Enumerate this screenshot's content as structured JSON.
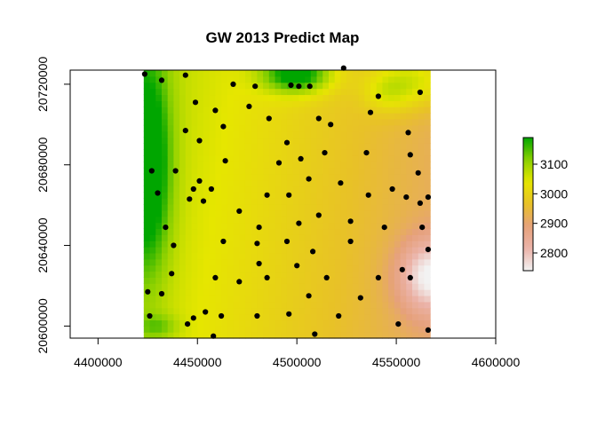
{
  "chart_data": {
    "type": "heatmap",
    "title": "GW 2013 Predict Map",
    "xlabel": "",
    "ylabel": "",
    "xlim": [
      4386000,
      4600000
    ],
    "ylim": [
      20594000,
      20727000
    ],
    "x_ticks": [
      4400000,
      4450000,
      4500000,
      4550000,
      4600000
    ],
    "x_tick_labels": [
      "4400000",
      "4450000",
      "4500000",
      "4550000",
      "4600000"
    ],
    "y_ticks": [
      20600000,
      20640000,
      20680000,
      20720000
    ],
    "y_tick_labels": [
      "20600000",
      "20640000",
      "20680000",
      "20720000"
    ],
    "raster_extent": {
      "x": [
        4423000,
        4567000
      ],
      "y": [
        20594000,
        20727000
      ]
    },
    "color_scale": {
      "range": [
        2740,
        3190
      ],
      "ticks": [
        2800,
        2900,
        3000,
        3100
      ],
      "tick_labels": [
        "2800",
        "2900",
        "3000",
        "3100"
      ],
      "palette": [
        "#f2f2f2",
        "#ebb3a9",
        "#e6a17b",
        "#e8c128",
        "#e6e600",
        "#8bd000",
        "#00a600"
      ]
    },
    "surface_model": {
      "base": 3000,
      "x_gradient": -1.1,
      "y_gradient": 0.15,
      "features": [
        {
          "x": 4425000,
          "y": 20680000,
          "amp": 200,
          "sx": 11000,
          "sy": 50000
        },
        {
          "x": 4500000,
          "y": 20725000,
          "amp": 225,
          "sx": 17000,
          "sy": 9000
        },
        {
          "x": 4560000,
          "y": 20722000,
          "amp": 110,
          "sx": 20000,
          "sy": 14000
        },
        {
          "x": 4545000,
          "y": 20716000,
          "amp": 60,
          "sx": 12000,
          "sy": 10000
        },
        {
          "x": 4567000,
          "y": 20625000,
          "amp": -190,
          "sx": 16000,
          "sy": 18000
        },
        {
          "x": 4430000,
          "y": 20600000,
          "amp": 70,
          "sx": 10000,
          "sy": 6000
        }
      ]
    },
    "points": [
      [
        4423500,
        20725000
      ],
      [
        4432000,
        20722000
      ],
      [
        4444000,
        20724500
      ],
      [
        4468000,
        20720000
      ],
      [
        4479000,
        20719000
      ],
      [
        4497000,
        20719500
      ],
      [
        4501000,
        20719000
      ],
      [
        4506500,
        20719000
      ],
      [
        4523500,
        20728000
      ],
      [
        4449000,
        20711000
      ],
      [
        4476000,
        20709000
      ],
      [
        4459000,
        20707000
      ],
      [
        4541000,
        20714000
      ],
      [
        4562000,
        20716000
      ],
      [
        4486000,
        20703000
      ],
      [
        4511000,
        20703000
      ],
      [
        4537000,
        20706000
      ],
      [
        4517000,
        20700000
      ],
      [
        4463000,
        20699000
      ],
      [
        4444000,
        20697000
      ],
      [
        4556000,
        20696000
      ],
      [
        4451000,
        20692000
      ],
      [
        4495000,
        20691000
      ],
      [
        4514000,
        20686000
      ],
      [
        4535000,
        20686000
      ],
      [
        4557000,
        20685000
      ],
      [
        4502000,
        20683000
      ],
      [
        4464000,
        20682000
      ],
      [
        4491000,
        20681000
      ],
      [
        4427000,
        20677000
      ],
      [
        4439000,
        20677000
      ],
      [
        4561000,
        20676000
      ],
      [
        4506000,
        20673000
      ],
      [
        4451000,
        20672000
      ],
      [
        4522000,
        20671000
      ],
      [
        4448000,
        20668000
      ],
      [
        4457000,
        20668000
      ],
      [
        4548000,
        20668000
      ],
      [
        4430000,
        20666000
      ],
      [
        4485000,
        20665000
      ],
      [
        4496000,
        20665000
      ],
      [
        4536000,
        20665000
      ],
      [
        4555000,
        20664000
      ],
      [
        4566000,
        20664000
      ],
      [
        4446000,
        20663000
      ],
      [
        4453000,
        20662000
      ],
      [
        4562000,
        20661000
      ],
      [
        4471000,
        20657000
      ],
      [
        4511000,
        20655000
      ],
      [
        4434000,
        20649000
      ],
      [
        4481000,
        20649000
      ],
      [
        4501000,
        20651000
      ],
      [
        4527000,
        20652000
      ],
      [
        4544000,
        20649000
      ],
      [
        4563000,
        20649000
      ],
      [
        4463000,
        20642000
      ],
      [
        4480000,
        20641000
      ],
      [
        4495000,
        20642000
      ],
      [
        4527000,
        20642000
      ],
      [
        4438000,
        20640000
      ],
      [
        4566000,
        20638000
      ],
      [
        4508000,
        20637000
      ],
      [
        4481000,
        20631000
      ],
      [
        4500000,
        20630000
      ],
      [
        4553000,
        20628000
      ],
      [
        4437000,
        20626000
      ],
      [
        4459000,
        20624000
      ],
      [
        4485000,
        20624000
      ],
      [
        4515000,
        20624000
      ],
      [
        4541000,
        20624000
      ],
      [
        4557000,
        20624000
      ],
      [
        4471000,
        20622000
      ],
      [
        4425000,
        20617000
      ],
      [
        4432000,
        20616000
      ],
      [
        4506000,
        20615000
      ],
      [
        4532000,
        20614000
      ],
      [
        4454000,
        20607000
      ],
      [
        4426000,
        20605000
      ],
      [
        4462000,
        20605000
      ],
      [
        4480000,
        20605000
      ],
      [
        4496000,
        20606000
      ],
      [
        4521000,
        20605000
      ],
      [
        4448000,
        20604000
      ],
      [
        4445000,
        20601000
      ],
      [
        4551000,
        20601000
      ],
      [
        4566000,
        20598000
      ],
      [
        4509000,
        20596000
      ],
      [
        4458000,
        20595000
      ]
    ]
  }
}
